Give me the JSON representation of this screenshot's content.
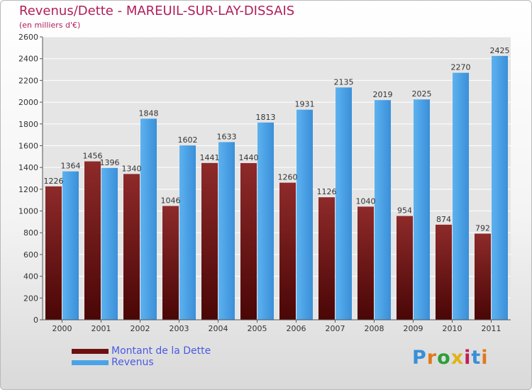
{
  "title": "Revenus/Dette - MAREUIL-SUR-LAY-DISSAIS",
  "subtitle": "(en milliers d'€)",
  "logo": "Proxiti",
  "colors": {
    "debt": "#7a1616",
    "revenue": "#4aa3e6",
    "title": "#b01e5a",
    "legend_text": "#4a5ae0"
  },
  "chart_data": {
    "type": "bar",
    "categories": [
      "2000",
      "2001",
      "2002",
      "2003",
      "2004",
      "2005",
      "2006",
      "2007",
      "2008",
      "2009",
      "2010",
      "2011"
    ],
    "series": [
      {
        "name": "Montant de la Dette",
        "values": [
          1226,
          1456,
          1340,
          1046,
          1441,
          1440,
          1260,
          1126,
          1040,
          954,
          874,
          792
        ]
      },
      {
        "name": "Revenus",
        "values": [
          1364,
          1396,
          1848,
          1602,
          1633,
          1813,
          1931,
          2135,
          2019,
          2025,
          2270,
          2425
        ]
      }
    ],
    "title": "Revenus/Dette - MAREUIL-SUR-LAY-DISSAIS",
    "xlabel": "",
    "ylabel": "(en milliers d'€)",
    "ylim": [
      0,
      2600
    ],
    "yticks": [
      0,
      200,
      400,
      600,
      800,
      1000,
      1200,
      1400,
      1600,
      1800,
      2000,
      2200,
      2400,
      2600
    ],
    "grid": true,
    "legend": "bottom-left"
  }
}
